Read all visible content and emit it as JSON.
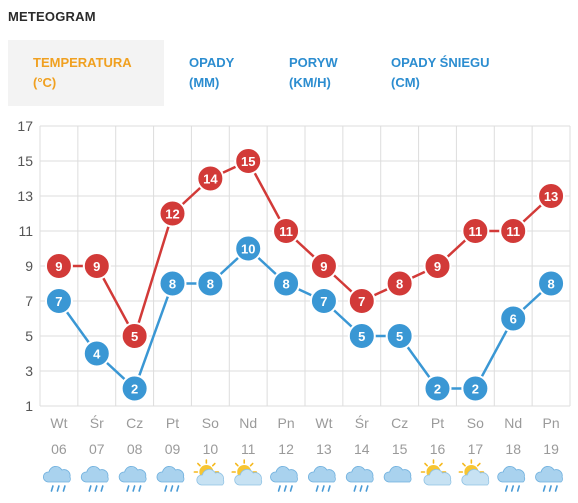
{
  "title": "METEOGRAM",
  "tabs": [
    {
      "line1": "TEMPERATURA",
      "line2": "(°C)",
      "active": true
    },
    {
      "line1": "OPADY",
      "line2": "(MM)",
      "active": false
    },
    {
      "line1": "PORYW",
      "line2": "(KM/H)",
      "active": false
    },
    {
      "line1": "OPADY ŚNIEGU",
      "line2": "(CM)",
      "active": false
    }
  ],
  "colors": {
    "accent": "#f0a020",
    "tab": "#2c8dd0",
    "max_series": "#d23a38",
    "min_series": "#3a97d4",
    "grid": "#dddddd",
    "tick": "#9a9a9a"
  },
  "chart_data": {
    "type": "line",
    "title": "",
    "xlabel": "",
    "ylabel": "",
    "ylim": [
      1,
      17
    ],
    "yticks": [
      1,
      3,
      5,
      7,
      9,
      11,
      13,
      15,
      17
    ],
    "grid": true,
    "days": [
      "Wt",
      "Śr",
      "Cz",
      "Pt",
      "So",
      "Nd",
      "Pn",
      "Wt",
      "Śr",
      "Cz",
      "Pt",
      "So",
      "Nd",
      "Pn"
    ],
    "dates": [
      "06",
      "07",
      "08",
      "09",
      "10",
      "11",
      "12",
      "13",
      "14",
      "15",
      "16",
      "17",
      "18",
      "19"
    ],
    "icons": [
      "cloud-rain-icon",
      "cloud-rain-icon",
      "cloud-rain-icon",
      "cloud-rain-icon",
      "sun-cloud-icon",
      "sun-cloud-icon",
      "cloud-rain-icon",
      "cloud-rain-icon",
      "cloud-rain-icon",
      "cloud-icon",
      "sun-cloud-icon",
      "sun-cloud-icon",
      "cloud-rain-icon",
      "cloud-rain-icon"
    ],
    "series": [
      {
        "values": [
          9,
          9,
          5,
          12,
          14,
          15,
          11,
          9,
          7,
          8,
          9,
          11,
          11,
          13
        ]
      },
      {
        "values": [
          7,
          4,
          2,
          8,
          8,
          10,
          8,
          7,
          5,
          5,
          2,
          2,
          6,
          8
        ]
      }
    ]
  }
}
